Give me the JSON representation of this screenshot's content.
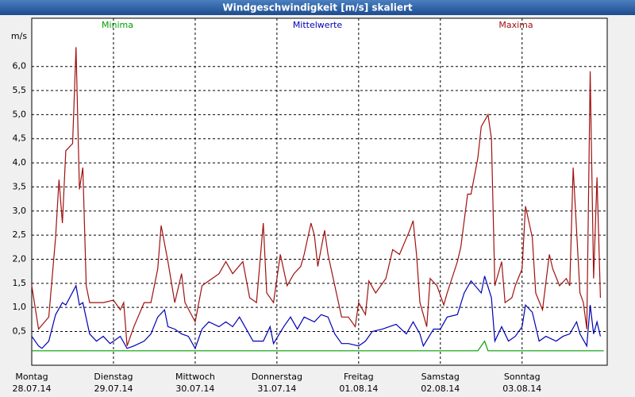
{
  "window_title": "Windgeschwindigkeit [m/s] skaliert",
  "chart_data": {
    "type": "line",
    "ylabel": "m/s",
    "xlim": [
      0,
      169
    ],
    "ylim": [
      -0.2,
      7.0
    ],
    "yticks": [
      {
        "value": 0.5,
        "label": "0,5"
      },
      {
        "value": 1.0,
        "label": "1,0"
      },
      {
        "value": 1.5,
        "label": "1,5"
      },
      {
        "value": 2.0,
        "label": "2,0"
      },
      {
        "value": 2.5,
        "label": "2,5"
      },
      {
        "value": 3.0,
        "label": "3,0"
      },
      {
        "value": 3.5,
        "label": "3,5"
      },
      {
        "value": 4.0,
        "label": "4,0"
      },
      {
        "value": 4.5,
        "label": "4,5"
      },
      {
        "value": 5.0,
        "label": "5,0"
      },
      {
        "value": 5.5,
        "label": "5,5"
      },
      {
        "value": 6.0,
        "label": "6,0"
      }
    ],
    "xticks": [
      {
        "value": 0,
        "label": "Montag"
      },
      {
        "value": 24,
        "label": "Dienstag"
      },
      {
        "value": 48,
        "label": "Mittwoch"
      },
      {
        "value": 72,
        "label": "Donnerstag"
      },
      {
        "value": 96,
        "label": "Freitag"
      },
      {
        "value": 120,
        "label": "Samstag"
      },
      {
        "value": 144,
        "label": "Sonntag"
      }
    ],
    "xtick_dates": [
      "28.07.14",
      "29.07.14",
      "30.07.14",
      "31.07.14",
      "01.08.14",
      "02.08.14",
      "03.08.14"
    ],
    "grid": true,
    "series": [
      {
        "name": "Minima",
        "color": "#00a000",
        "x": [
          0,
          131,
          133,
          134,
          168
        ],
        "values": [
          0.1,
          0.1,
          0.3,
          0.1,
          0.1
        ]
      },
      {
        "name": "Mittelwerte",
        "color": "#0000b4",
        "x": [
          0,
          2,
          3,
          5,
          7,
          9,
          10,
          13,
          14,
          15,
          17,
          19,
          21,
          23,
          26,
          28,
          30,
          33,
          35,
          37,
          39,
          40,
          42,
          44,
          46,
          48,
          50,
          52,
          55,
          57,
          59,
          61,
          63,
          65,
          68,
          70,
          71,
          74,
          76,
          78,
          80,
          83,
          85,
          87,
          89,
          91,
          93,
          96,
          98,
          100,
          103,
          105,
          107,
          110,
          112,
          114,
          115,
          118,
          120,
          122,
          125,
          127,
          129,
          132,
          133,
          135,
          136,
          138,
          140,
          142,
          144,
          145,
          147,
          149,
          151,
          154,
          156,
          158,
          160,
          161,
          163,
          164,
          165,
          166,
          167
        ],
        "values": [
          0.4,
          0.2,
          0.15,
          0.3,
          0.85,
          1.1,
          1.05,
          1.45,
          1.05,
          1.1,
          0.45,
          0.3,
          0.4,
          0.25,
          0.4,
          0.15,
          0.2,
          0.3,
          0.45,
          0.8,
          0.95,
          0.6,
          0.55,
          0.45,
          0.4,
          0.15,
          0.55,
          0.7,
          0.6,
          0.7,
          0.6,
          0.8,
          0.55,
          0.3,
          0.3,
          0.6,
          0.25,
          0.6,
          0.8,
          0.55,
          0.8,
          0.7,
          0.85,
          0.8,
          0.45,
          0.25,
          0.25,
          0.2,
          0.3,
          0.5,
          0.55,
          0.6,
          0.65,
          0.45,
          0.7,
          0.45,
          0.2,
          0.55,
          0.55,
          0.8,
          0.85,
          1.3,
          1.55,
          1.3,
          1.65,
          1.2,
          0.3,
          0.6,
          0.3,
          0.4,
          0.6,
          1.05,
          0.9,
          0.3,
          0.4,
          0.3,
          0.4,
          0.45,
          0.7,
          0.45,
          0.2,
          1.05,
          0.45,
          0.7,
          0.4
        ]
      },
      {
        "name": "Maxima",
        "color": "#a01010",
        "x": [
          0,
          2,
          5,
          7,
          8,
          9,
          10,
          12,
          13,
          14,
          15,
          16,
          17,
          21,
          24,
          26,
          27,
          28,
          30,
          33,
          35,
          37,
          38,
          40,
          42,
          44,
          45,
          48,
          50,
          52,
          55,
          57,
          59,
          62,
          64,
          66,
          68,
          69,
          71,
          73,
          75,
          77,
          79,
          80,
          82,
          83,
          84,
          86,
          87,
          89,
          91,
          93,
          95,
          96,
          98,
          99,
          101,
          104,
          106,
          108,
          111,
          112,
          113,
          114,
          116,
          117,
          119,
          121,
          122,
          125,
          126,
          128,
          129,
          131,
          132,
          134,
          135,
          136,
          138,
          139,
          141,
          142,
          144,
          145,
          147,
          148,
          150,
          152,
          153,
          155,
          157,
          158,
          159,
          161,
          162,
          163,
          164,
          165,
          166,
          167
        ],
        "values": [
          1.45,
          0.55,
          0.8,
          2.45,
          3.65,
          2.75,
          4.25,
          4.4,
          6.4,
          3.45,
          3.9,
          1.45,
          1.1,
          1.1,
          1.15,
          0.95,
          1.1,
          0.2,
          0.6,
          1.1,
          1.1,
          1.8,
          2.7,
          1.95,
          1.1,
          1.7,
          1.1,
          0.7,
          1.45,
          1.55,
          1.7,
          1.95,
          1.7,
          1.95,
          1.2,
          1.1,
          2.75,
          1.3,
          1.1,
          2.1,
          1.45,
          1.7,
          1.85,
          2.1,
          2.75,
          2.5,
          1.85,
          2.6,
          2.1,
          1.45,
          0.8,
          0.8,
          0.6,
          1.1,
          0.85,
          1.55,
          1.3,
          1.6,
          2.2,
          2.1,
          2.6,
          2.8,
          2.1,
          1.1,
          0.6,
          1.6,
          1.45,
          1.05,
          1.3,
          1.95,
          2.25,
          3.35,
          3.35,
          4.1,
          4.75,
          5.0,
          4.5,
          1.45,
          1.95,
          1.1,
          1.2,
          1.45,
          1.8,
          3.1,
          2.45,
          1.3,
          0.95,
          2.1,
          1.8,
          1.45,
          1.6,
          1.45,
          3.9,
          1.3,
          1.1,
          0.55,
          5.9,
          1.6,
          3.7,
          1.2
        ]
      }
    ]
  }
}
